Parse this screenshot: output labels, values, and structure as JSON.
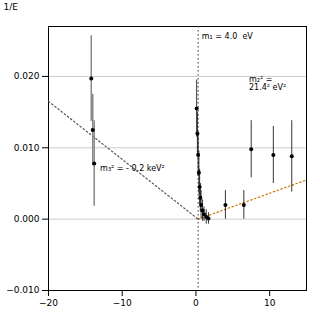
{
  "chart_data": {
    "type": "scatter",
    "ylabel": "1/E",
    "xlim": [
      -20,
      15
    ],
    "ylim": [
      -0.01,
      0.027
    ],
    "xticks": [
      -20,
      -10,
      0,
      10
    ],
    "yticks": [
      -0.01,
      0,
      0.01,
      0.02
    ],
    "grid": "y",
    "marker": "circle",
    "series": [
      {
        "color": "#000000",
        "error_color": "#888888",
        "x": [
          -14.2,
          -14.0,
          -13.8
        ],
        "y": [
          0.0197,
          0.0125,
          0.0078
        ],
        "yerr_lo": [
          0.006,
          0.005,
          0.006
        ],
        "yerr_hi": [
          0.006,
          0.005,
          0.006
        ]
      },
      {
        "color": "#000000",
        "x": [
          0.1,
          0.2,
          0.3,
          0.4,
          0.5,
          0.6,
          0.7,
          0.9,
          1.1,
          1.4,
          1.7
        ],
        "y": [
          0.0155,
          0.012,
          0.009,
          0.0065,
          0.0045,
          0.003,
          0.002,
          0.0012,
          0.0007,
          0.0003,
          0.0001
        ],
        "yerr": [
          0.004,
          0.003,
          0.003,
          0.003,
          0.0025,
          0.002,
          0.002,
          0.0015,
          0.001,
          0.001,
          0.0008
        ]
      },
      {
        "color": "#000000",
        "x": [
          4.0,
          6.5,
          7.5,
          10.5,
          13.0
        ],
        "y": [
          0.002,
          0.002,
          0.0098,
          0.009,
          0.0088
        ],
        "yerr": [
          0.002,
          0.002,
          0.004,
          0.004,
          0.005
        ]
      }
    ],
    "lines": [
      {
        "x": [
          -20,
          0.3
        ],
        "y": [
          0.0165,
          0.0
        ],
        "color": "#555555",
        "line_style": "dotted"
      },
      {
        "x": [
          0.3,
          15
        ],
        "y": [
          0.0,
          0.0055
        ],
        "color": "#cc7700",
        "line_style": "dotted"
      }
    ],
    "vlines": [
      {
        "x": 0.3,
        "color": "#444444",
        "line_style": "dotted"
      }
    ],
    "annotations": [
      {
        "text": "m₁ = 4.0  eV",
        "x": 0.8,
        "y": 0.026
      },
      {
        "text": "m₂² =\n21.4² eV²",
        "x": 7.2,
        "y": 0.02
      },
      {
        "text": "m₃² = - 0.2 keV²",
        "x": -13.0,
        "y": 0.0075
      }
    ]
  }
}
